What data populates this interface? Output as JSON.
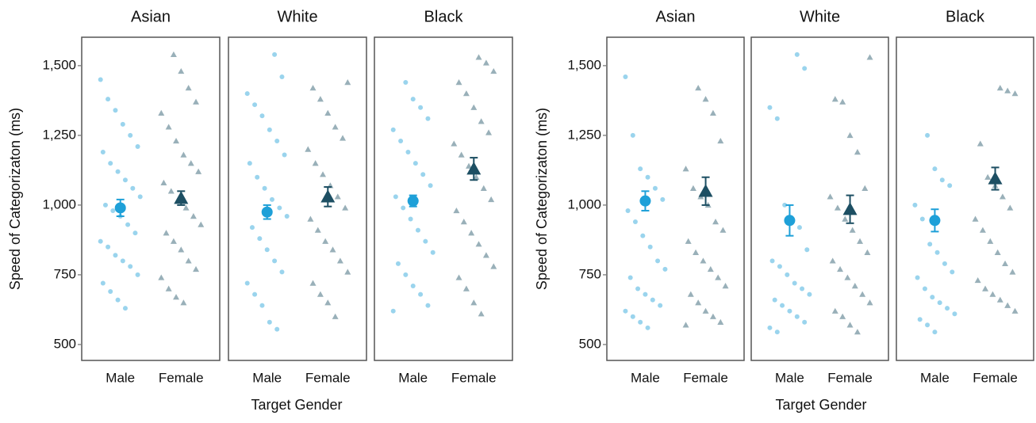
{
  "chart_data": [
    {
      "type": "scatter",
      "x_label": "Target Gender",
      "y_label": "Speed of Categorizaton (ms)",
      "ylim": [
        443,
        1602
      ],
      "yticks": [
        500,
        750,
        {
          "value": 1000,
          "label": "1,000"
        },
        {
          "value": 1250,
          "label": "1,250"
        },
        {
          "value": 1500,
          "label": "1,500"
        }
      ],
      "series": [
        {
          "name": "Male",
          "color": "#1ea0d8",
          "marker": "circle"
        },
        {
          "name": "Female",
          "color": "#1d4f63",
          "marker": "triangle"
        }
      ],
      "facets": [
        {
          "title": "Asian",
          "points": [
            [
              1450,
              1380,
              1340,
              1290,
              1250,
              1210,
              1190,
              1150,
              1120,
              1090,
              1060,
              1030,
              1000,
              980,
              960,
              930,
              900,
              870,
              850,
              820,
              800,
              780,
              750,
              720,
              690,
              660,
              630
            ],
            [
              1540,
              1480,
              1420,
              1370,
              1330,
              1280,
              1230,
              1180,
              1150,
              1120,
              1080,
              1050,
              1020,
              990,
              960,
              930,
              900,
              870,
              840,
              800,
              770,
              740,
              700,
              670,
              650
            ]
          ],
          "means": [
            990,
            1025
          ],
          "errors": [
            30,
            25
          ]
        },
        {
          "title": "White",
          "points": [
            [
              1540,
              1460,
              1400,
              1360,
              1320,
              1270,
              1230,
              1180,
              1150,
              1100,
              1060,
              1020,
              990,
              960,
              920,
              880,
              840,
              800,
              760,
              720,
              680,
              640,
              580,
              555
            ],
            [
              1440,
              1420,
              1380,
              1330,
              1280,
              1240,
              1200,
              1150,
              1110,
              1070,
              1030,
              990,
              950,
              910,
              870,
              840,
              800,
              760,
              720,
              680,
              650,
              600
            ]
          ],
          "means": [
            975,
            1030
          ],
          "errors": [
            25,
            35
          ]
        },
        {
          "title": "Black",
          "points": [
            [
              1440,
              1380,
              1350,
              1310,
              1270,
              1230,
              1190,
              1150,
              1110,
              1070,
              1030,
              990,
              950,
              910,
              870,
              830,
              790,
              750,
              710,
              680,
              640,
              620
            ],
            [
              1530,
              1510,
              1480,
              1440,
              1400,
              1350,
              1300,
              1260,
              1220,
              1180,
              1140,
              1100,
              1060,
              1020,
              980,
              940,
              900,
              860,
              820,
              780,
              740,
              700,
              650,
              610
            ]
          ],
          "means": [
            1015,
            1130
          ],
          "errors": [
            20,
            40
          ]
        }
      ]
    },
    {
      "type": "scatter",
      "x_label": "Target Gender",
      "y_label": "Speed of Categorizaton (ms)",
      "ylim": [
        443,
        1602
      ],
      "yticks": [
        500,
        750,
        {
          "value": 1000,
          "label": "1,000"
        },
        {
          "value": 1250,
          "label": "1,250"
        },
        {
          "value": 1500,
          "label": "1,500"
        }
      ],
      "series": [
        {
          "name": "Male",
          "color": "#1ea0d8",
          "marker": "circle"
        },
        {
          "name": "Female",
          "color": "#1d4f63",
          "marker": "triangle"
        }
      ],
      "facets": [
        {
          "title": "Asian",
          "points": [
            [
              1460,
              1250,
              1130,
              1100,
              1060,
              1020,
              980,
              940,
              890,
              850,
              800,
              770,
              740,
              700,
              680,
              660,
              640,
              620,
              600,
              580,
              560
            ],
            [
              1420,
              1380,
              1330,
              1230,
              1130,
              1060,
              1030,
              1000,
              940,
              910,
              870,
              830,
              800,
              770,
              740,
              710,
              680,
              650,
              620,
              600,
              580,
              570
            ]
          ],
          "means": [
            1015,
            1050
          ],
          "errors": [
            35,
            50
          ]
        },
        {
          "title": "White",
          "points": [
            [
              1540,
              1490,
              1350,
              1310,
              1000,
              950,
              920,
              840,
              800,
              780,
              750,
              720,
              700,
              680,
              660,
              640,
              620,
              600,
              580,
              560,
              545
            ],
            [
              1530,
              1380,
              1370,
              1250,
              1190,
              1060,
              1030,
              990,
              950,
              910,
              870,
              830,
              800,
              770,
              740,
              710,
              680,
              650,
              620,
              600,
              570,
              545
            ]
          ],
          "means": [
            945,
            985
          ],
          "errors": [
            55,
            50
          ]
        },
        {
          "title": "Black",
          "points": [
            [
              1250,
              1130,
              1090,
              1070,
              1000,
              950,
              860,
              830,
              790,
              760,
              740,
              700,
              670,
              650,
              630,
              610,
              590,
              570,
              545
            ],
            [
              1420,
              1410,
              1400,
              1220,
              1100,
              1070,
              1030,
              990,
              950,
              910,
              870,
              830,
              790,
              760,
              730,
              700,
              680,
              660,
              640,
              620
            ]
          ],
          "means": [
            945,
            1095
          ],
          "errors": [
            40,
            40
          ]
        }
      ]
    }
  ]
}
